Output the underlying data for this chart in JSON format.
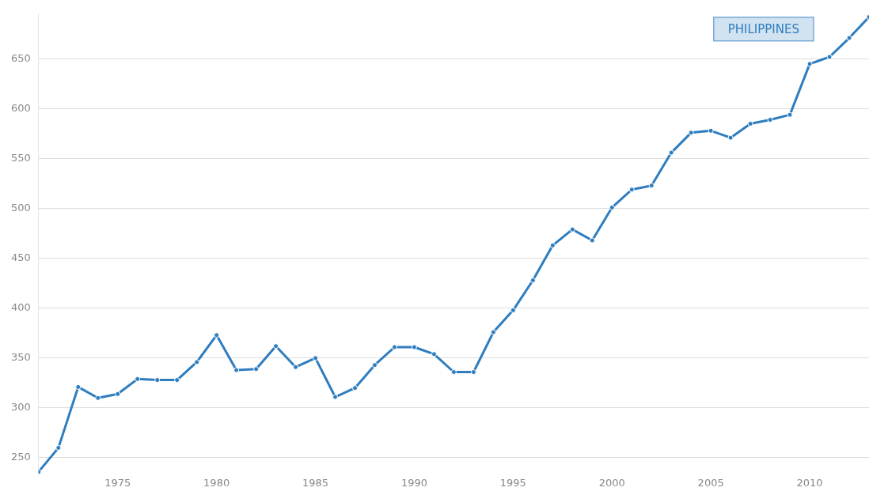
{
  "chart_data": {
    "type": "line",
    "x": [
      1971,
      1972,
      1973,
      1974,
      1975,
      1976,
      1977,
      1978,
      1979,
      1980,
      1981,
      1982,
      1983,
      1984,
      1985,
      1986,
      1987,
      1988,
      1989,
      1990,
      1991,
      1992,
      1993,
      1994,
      1995,
      1996,
      1997,
      1998,
      1999,
      2000,
      2001,
      2002,
      2003,
      2004,
      2005,
      2006,
      2007,
      2008,
      2009,
      2010,
      2011,
      2012,
      2013
    ],
    "series": [
      {
        "name": "PHILIPPINES",
        "color": "#2e7dbf",
        "values": [
          236,
          260,
          321,
          310,
          314,
          329,
          328,
          328,
          346,
          373,
          338,
          339,
          362,
          341,
          350,
          311,
          320,
          343,
          361,
          361,
          354,
          336,
          336,
          376,
          398,
          428,
          463,
          479,
          468,
          501,
          519,
          523,
          556,
          576,
          578,
          571,
          585,
          589,
          594,
          645,
          652,
          671,
          692
        ]
      }
    ],
    "xlim": [
      1971,
      2013
    ],
    "xticks": [
      1975,
      1980,
      1985,
      1990,
      1995,
      2000,
      2005,
      2010
    ],
    "ylim": [
      233,
      695
    ],
    "yticks": [
      250,
      300,
      350,
      400,
      450,
      500,
      550,
      600,
      650
    ],
    "grid": "y",
    "legend": false,
    "marker": "circle",
    "line_style": "solid"
  }
}
